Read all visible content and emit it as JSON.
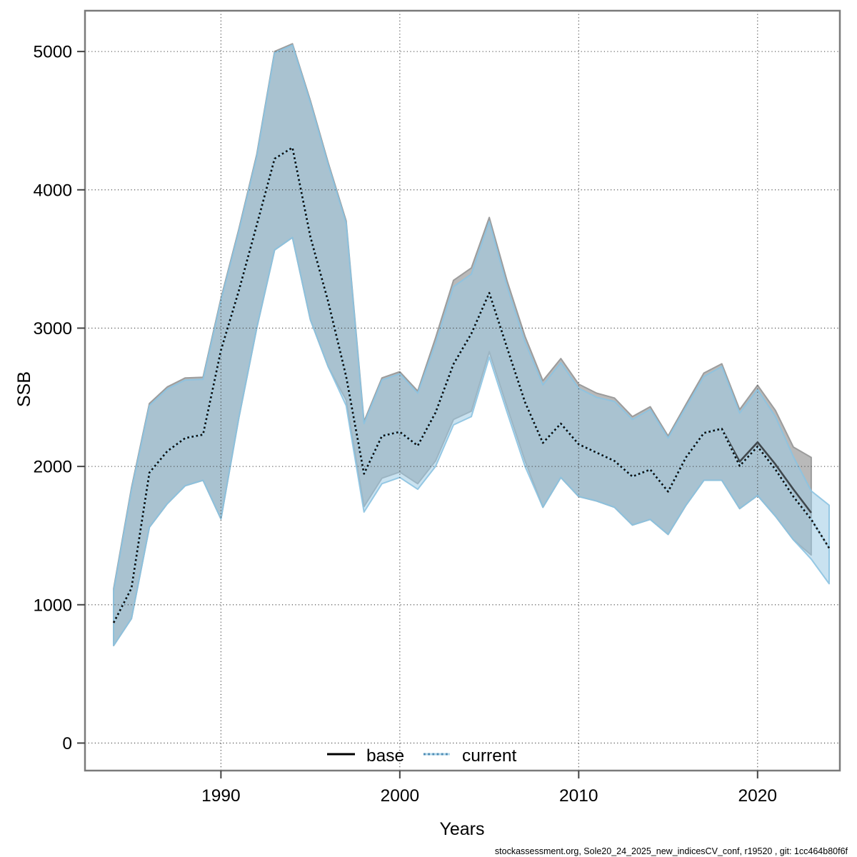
{
  "figure": {
    "footer": "stockassessment.org, Sole20_24_2025_new_indicesCV_conf, r19520 , git: 1cc464b80f6f"
  },
  "chart_data": {
    "type": "line",
    "title": "",
    "xlabel": "Years",
    "ylabel": "SSB",
    "x_ticks": [
      1990,
      2000,
      2010,
      2020
    ],
    "y_ticks": [
      0,
      1000,
      2000,
      3000,
      4000,
      5000
    ],
    "xlim": [
      1982.4,
      2024.6
    ],
    "ylim": [
      -199,
      5295
    ],
    "grid": "dotted",
    "legend": {
      "position": "bottom-center-inside",
      "entries": [
        {
          "label": "base",
          "style": "solid",
          "color": "#000000"
        },
        {
          "label": "current",
          "style": "dotted",
          "color": "#4d8cb4"
        }
      ]
    },
    "colors": {
      "frame": "#7a7a7a",
      "grid": "#404040",
      "tick": "#444444",
      "text": "#000000",
      "base_line": "#3f474c",
      "base_band_fill": "#b9b9b9",
      "base_band_edge": "#9c9c9c",
      "current_line_dot": "#111111",
      "current_line_under": "#a9d3e8",
      "current_band_fill": "rgba(157,202,228,0.55)",
      "current_band_edge": "rgba(140,195,225,0.9)",
      "legend_current_dot": "#4d8cb4",
      "legend_current_under": "#b5d9ec"
    },
    "series": [
      {
        "name": "base",
        "style": "solid",
        "start_year": 1984,
        "end_year": 2023,
        "mean": [
          870,
          1120,
          1955,
          2110,
          2205,
          2230,
          2840,
          3270,
          3745,
          4225,
          4305,
          3660,
          3190,
          2650,
          1947,
          2220,
          2250,
          2150,
          2390,
          2740,
          2960,
          3255,
          2857,
          2464,
          2170,
          2310,
          2160,
          2100,
          2040,
          1927,
          1978,
          1818,
          2066,
          2242,
          2273,
          2035,
          2175,
          2015,
          1835,
          1665
        ],
        "lo": [
          705,
          900,
          1560,
          1730,
          1860,
          1900,
          1620,
          2350,
          3000,
          3565,
          3655,
          3060,
          2720,
          2480,
          1710,
          1915,
          1960,
          1875,
          2040,
          2340,
          2400,
          2830,
          2430,
          2040,
          1705,
          1920,
          1782,
          1750,
          1705,
          1576,
          1617,
          1508,
          1720,
          1900,
          1900,
          1695,
          1790,
          1640,
          1470,
          1360
        ],
        "hi": [
          1115,
          1845,
          2455,
          2575,
          2640,
          2645,
          3215,
          3715,
          4255,
          5000,
          5056,
          4645,
          4195,
          3775,
          2325,
          2640,
          2685,
          2545,
          2930,
          3345,
          3435,
          3800,
          3340,
          2940,
          2620,
          2780,
          2595,
          2530,
          2495,
          2360,
          2432,
          2220,
          2450,
          2675,
          2742,
          2411,
          2587,
          2405,
          2140,
          2065
        ]
      },
      {
        "name": "current",
        "style": "dotted",
        "start_year": 1984,
        "end_year": 2024,
        "mean": [
          870,
          1120,
          1955,
          2110,
          2205,
          2230,
          2840,
          3270,
          3745,
          4225,
          4305,
          3660,
          3190,
          2650,
          1947,
          2220,
          2250,
          2150,
          2390,
          2740,
          2960,
          3255,
          2857,
          2464,
          2170,
          2310,
          2160,
          2100,
          2040,
          1927,
          1978,
          1818,
          2066,
          2242,
          2273,
          2004,
          2144,
          1978,
          1782,
          1617,
          1410
        ],
        "lo": [
          705,
          900,
          1560,
          1730,
          1860,
          1900,
          1620,
          2350,
          3000,
          3565,
          3655,
          3060,
          2720,
          2440,
          1670,
          1875,
          1920,
          1835,
          2000,
          2300,
          2360,
          2790,
          2390,
          2000,
          1705,
          1920,
          1782,
          1750,
          1705,
          1576,
          1617,
          1508,
          1720,
          1900,
          1900,
          1695,
          1790,
          1640,
          1470,
          1330,
          1152
        ],
        "hi": [
          1100,
          1830,
          2440,
          2560,
          2625,
          2630,
          3200,
          3700,
          4240,
          4990,
          5046,
          4630,
          4180,
          3760,
          2310,
          2625,
          2670,
          2530,
          2890,
          3300,
          3390,
          3770,
          3300,
          2900,
          2590,
          2750,
          2565,
          2500,
          2470,
          2340,
          2412,
          2205,
          2430,
          2650,
          2722,
          2386,
          2557,
          2360,
          2070,
          1823,
          1720
        ]
      }
    ]
  }
}
